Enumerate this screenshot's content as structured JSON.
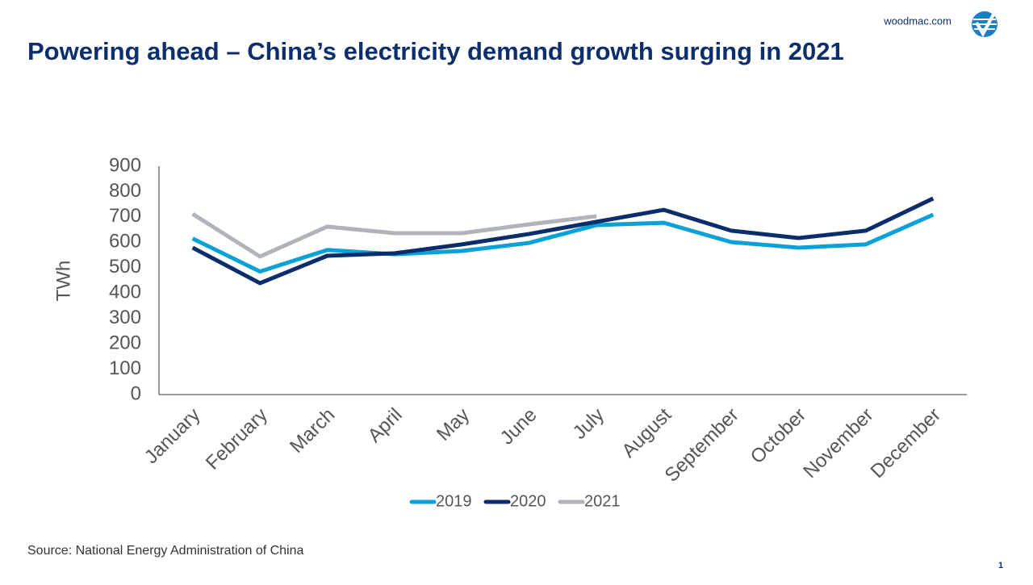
{
  "site": "woodmac.com",
  "page": "1",
  "source": "Source: National Energy Administration of China",
  "chart_data": {
    "type": "line",
    "title": "Powering ahead – China’s electricity demand growth surging in 2021",
    "y_label": "TWh",
    "categories": [
      "January",
      "February",
      "March",
      "April",
      "May",
      "June",
      "July",
      "August",
      "September",
      "October",
      "November",
      "December"
    ],
    "series": [
      {
        "name": "2019",
        "color": "#0aa0d8",
        "values": [
          615,
          485,
          570,
          553,
          566,
          598,
          668,
          677,
          601,
          579,
          592,
          709
        ]
      },
      {
        "name": "2020",
        "color": "#0c2d6b",
        "values": [
          579,
          439,
          547,
          557,
          592,
          633,
          681,
          728,
          646,
          617,
          646,
          773
        ]
      },
      {
        "name": "2021",
        "color": "#b0b3b8",
        "values": [
          712,
          544,
          662,
          636,
          636,
          671,
          703,
          null,
          null,
          null,
          null,
          null
        ]
      }
    ],
    "ylim": [
      0,
      900
    ],
    "yticks": [
      0,
      100,
      200,
      300,
      400,
      500,
      600,
      700,
      800,
      900
    ]
  }
}
